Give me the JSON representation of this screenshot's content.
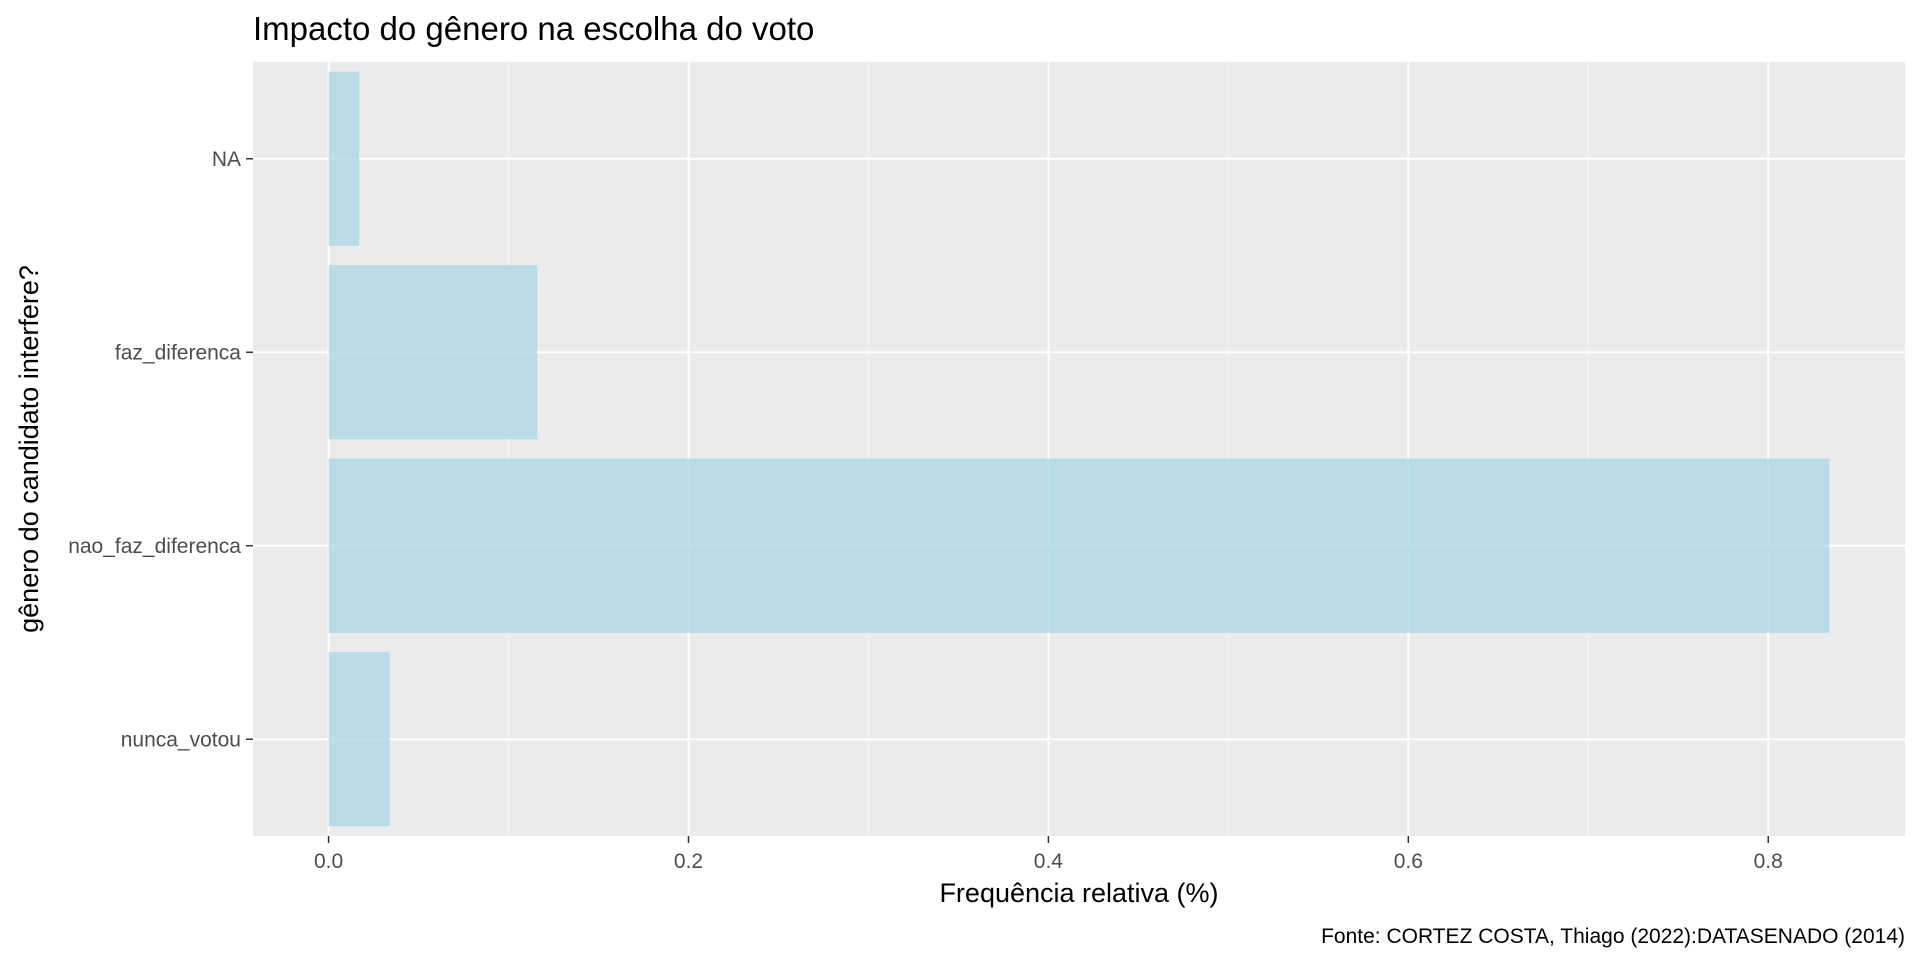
{
  "chart_data": {
    "type": "bar",
    "orientation": "horizontal",
    "title": "Impacto do gênero na escolha do voto",
    "xlabel": "Frequência relativa (%)",
    "ylabel": "gênero do candidato interfere?",
    "caption": "Fonte: CORTEZ COSTA, Thiago (2022):DATASENADO (2014)",
    "categories": [
      "nunca_votou",
      "nao_faz_diferenca",
      "faz_diferenca",
      "NA"
    ],
    "values": [
      0.034,
      0.834,
      0.116,
      0.017
    ],
    "xlim": [
      -0.042,
      0.876
    ],
    "xticks": [
      0.0,
      0.2,
      0.4,
      0.6,
      0.8
    ],
    "xtick_labels": [
      "0.0",
      "0.2",
      "0.4",
      "0.6",
      "0.8"
    ],
    "grid": true,
    "colors": {
      "bar": "#add8e6",
      "panel_background": "#ebebeb",
      "grid_major": "#ffffff",
      "grid_minor": "#f5f5f5",
      "tick_text": "#4d4d4d"
    }
  }
}
